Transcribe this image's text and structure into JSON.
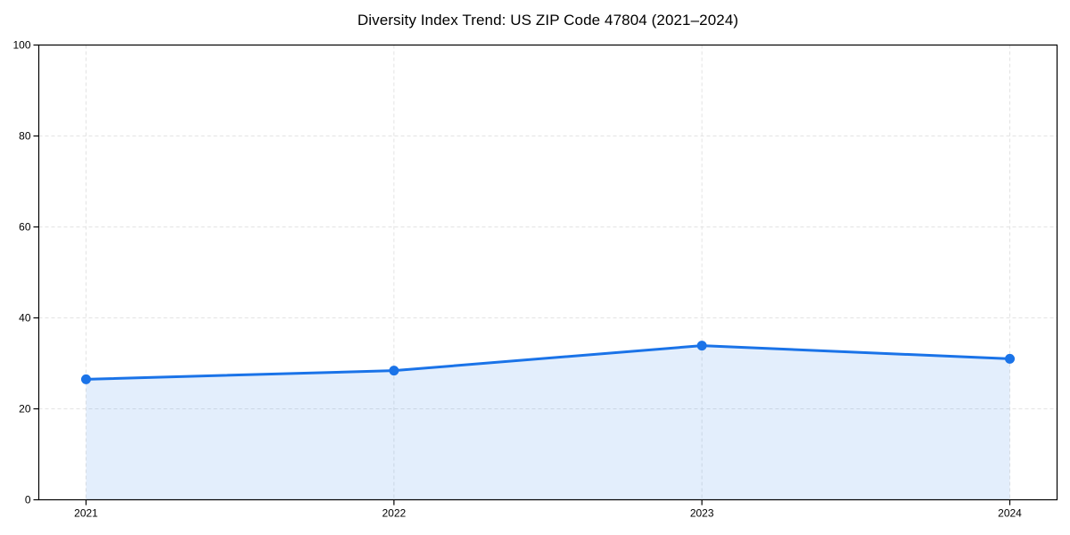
{
  "title": "Diversity Index Trend: US ZIP Code 47804 (2021–2024)",
  "chart_data": {
    "type": "area",
    "title": "Diversity Index Trend: US ZIP Code 47804 (2021–2024)",
    "x_categories": [
      "2021",
      "2022",
      "2023",
      "2024"
    ],
    "series": [
      {
        "name": "Diversity Index",
        "values": [
          26.5,
          28.4,
          33.9,
          31.0
        ]
      }
    ],
    "xlabel": "",
    "ylabel": "",
    "ylim": [
      0,
      100
    ],
    "yticks": [
      0,
      20,
      40,
      60,
      80,
      100
    ],
    "ytick_labels": [
      "0",
      "20",
      "40",
      "60",
      "80",
      "100"
    ],
    "grid": "dashed",
    "legend": "none",
    "colors": {
      "line": "#1a73e8",
      "marker": "#1a73e8",
      "fill": "rgba(26,115,232,0.12)",
      "grid": "#e3e3e3",
      "axis": "#000000",
      "text": "#000000",
      "background": "#ffffff"
    }
  }
}
